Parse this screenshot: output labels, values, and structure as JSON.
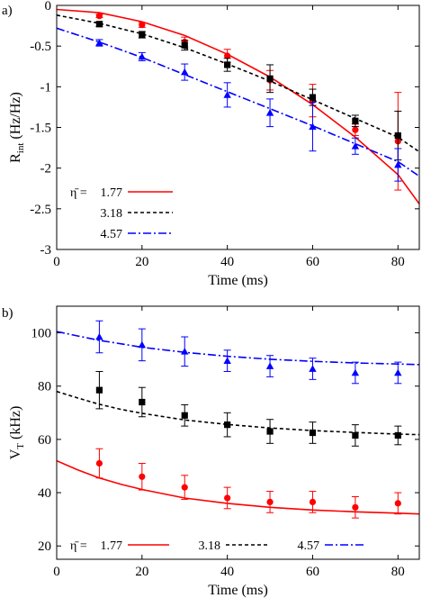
{
  "chart_data": [
    {
      "panel_label": "a)",
      "type": "line",
      "xlabel": "Time (ms)",
      "ylabel_main": "R",
      "ylabel_sub": "int",
      "ylabel_unit": " (Hz/Hz)",
      "xlim": [
        0,
        85
      ],
      "ylim": [
        -3,
        0
      ],
      "x_ticks": [
        0,
        20,
        40,
        60,
        80
      ],
      "y_ticks": [
        -3,
        -2.5,
        -2,
        -1.5,
        -1,
        -0.5,
        0
      ],
      "x_tick_labels": [
        "0",
        "20",
        "40",
        "60",
        "80"
      ],
      "y_tick_labels": [
        "-3",
        "-2.5",
        "-2",
        "-1.5",
        "-1",
        "-0.5",
        "0"
      ],
      "legend_position": "bottom-left",
      "legend_header": "η̄ = ",
      "series": [
        {
          "name": "1.77",
          "color": "#ff0000",
          "marker": "circle",
          "line_style": "solid",
          "points": [
            {
              "x": 10,
              "y": -0.13,
              "err": 0.02
            },
            {
              "x": 20,
              "y": -0.24,
              "err": 0.03
            },
            {
              "x": 30,
              "y": -0.45,
              "err": 0.06
            },
            {
              "x": 40,
              "y": -0.62,
              "err": 0.08
            },
            {
              "x": 50,
              "y": -0.92,
              "err": 0.12
            },
            {
              "x": 60,
              "y": -1.17,
              "err": 0.2
            },
            {
              "x": 70,
              "y": -1.53,
              "err": 0.07
            },
            {
              "x": 80,
              "y": -1.67,
              "err": 0.6
            }
          ],
          "fit": [
            {
              "x": 0,
              "y": -0.05
            },
            {
              "x": 10,
              "y": -0.09
            },
            {
              "x": 20,
              "y": -0.2
            },
            {
              "x": 30,
              "y": -0.37
            },
            {
              "x": 40,
              "y": -0.6
            },
            {
              "x": 50,
              "y": -0.88
            },
            {
              "x": 60,
              "y": -1.22
            },
            {
              "x": 70,
              "y": -1.62
            },
            {
              "x": 80,
              "y": -2.08
            },
            {
              "x": 85,
              "y": -2.44
            }
          ]
        },
        {
          "name": "3.18",
          "color": "#000000",
          "marker": "square",
          "line_style": "dashed",
          "points": [
            {
              "x": 10,
              "y": -0.23,
              "err": 0.03
            },
            {
              "x": 20,
              "y": -0.36,
              "err": 0.04
            },
            {
              "x": 30,
              "y": -0.49,
              "err": 0.06
            },
            {
              "x": 40,
              "y": -0.73,
              "err": 0.08
            },
            {
              "x": 50,
              "y": -0.9,
              "err": 0.17
            },
            {
              "x": 60,
              "y": -1.13,
              "err": 0.1
            },
            {
              "x": 70,
              "y": -1.42,
              "err": 0.07
            },
            {
              "x": 80,
              "y": -1.6,
              "err": 0.3
            }
          ],
          "fit": [
            {
              "x": 0,
              "y": -0.12
            },
            {
              "x": 10,
              "y": -0.22
            },
            {
              "x": 20,
              "y": -0.35
            },
            {
              "x": 30,
              "y": -0.52
            },
            {
              "x": 40,
              "y": -0.72
            },
            {
              "x": 50,
              "y": -0.93
            },
            {
              "x": 60,
              "y": -1.16
            },
            {
              "x": 70,
              "y": -1.39
            },
            {
              "x": 80,
              "y": -1.62
            },
            {
              "x": 85,
              "y": -1.8
            }
          ]
        },
        {
          "name": "4.57",
          "color": "#0000ff",
          "marker": "triangle",
          "line_style": "dashdot",
          "points": [
            {
              "x": 10,
              "y": -0.46,
              "err": 0.04
            },
            {
              "x": 20,
              "y": -0.63,
              "err": 0.05
            },
            {
              "x": 30,
              "y": -0.82,
              "err": 0.1
            },
            {
              "x": 40,
              "y": -1.1,
              "err": 0.15
            },
            {
              "x": 50,
              "y": -1.32,
              "err": 0.17
            },
            {
              "x": 60,
              "y": -1.49,
              "err": 0.3
            },
            {
              "x": 70,
              "y": -1.73,
              "err": 0.1
            },
            {
              "x": 80,
              "y": -1.96,
              "err": 0.2
            }
          ],
          "fit": [
            {
              "x": 0,
              "y": -0.28
            },
            {
              "x": 10,
              "y": -0.45
            },
            {
              "x": 20,
              "y": -0.64
            },
            {
              "x": 30,
              "y": -0.85
            },
            {
              "x": 40,
              "y": -1.06
            },
            {
              "x": 50,
              "y": -1.27
            },
            {
              "x": 60,
              "y": -1.48
            },
            {
              "x": 70,
              "y": -1.7
            },
            {
              "x": 80,
              "y": -1.92
            },
            {
              "x": 85,
              "y": -2.1
            }
          ]
        }
      ]
    },
    {
      "panel_label": "b)",
      "type": "line",
      "xlabel": "Time (ms)",
      "ylabel_main": "V",
      "ylabel_sub": "T",
      "ylabel_unit": " (kHz)",
      "xlim": [
        0,
        85
      ],
      "ylim": [
        15,
        110
      ],
      "x_ticks": [
        0,
        20,
        40,
        60,
        80
      ],
      "y_ticks": [
        20,
        40,
        60,
        80,
        100
      ],
      "x_tick_labels": [
        "0",
        "20",
        "40",
        "60",
        "80"
      ],
      "y_tick_labels": [
        "20",
        "40",
        "60",
        "80",
        "100"
      ],
      "legend_position": "bottom",
      "legend_header": "η̄ = ",
      "series": [
        {
          "name": "1.77",
          "color": "#ff0000",
          "marker": "circle",
          "line_style": "solid",
          "points": [
            {
              "x": 10,
              "y": 51,
              "err": 5.5
            },
            {
              "x": 20,
              "y": 46,
              "err": 5
            },
            {
              "x": 30,
              "y": 42,
              "err": 4.5
            },
            {
              "x": 40,
              "y": 38,
              "err": 4
            },
            {
              "x": 50,
              "y": 36.5,
              "err": 4
            },
            {
              "x": 60,
              "y": 36.5,
              "err": 4
            },
            {
              "x": 70,
              "y": 34.5,
              "err": 4
            },
            {
              "x": 80,
              "y": 36,
              "err": 4
            }
          ],
          "fit": [
            {
              "x": 0,
              "y": 52
            },
            {
              "x": 5,
              "y": 48.5
            },
            {
              "x": 10,
              "y": 45.5
            },
            {
              "x": 15,
              "y": 43.2
            },
            {
              "x": 20,
              "y": 41.2
            },
            {
              "x": 30,
              "y": 38
            },
            {
              "x": 40,
              "y": 36
            },
            {
              "x": 50,
              "y": 34.5
            },
            {
              "x": 60,
              "y": 33.5
            },
            {
              "x": 70,
              "y": 32.8
            },
            {
              "x": 80,
              "y": 32.3
            },
            {
              "x": 85,
              "y": 32
            }
          ]
        },
        {
          "name": "3.18",
          "color": "#000000",
          "marker": "square",
          "line_style": "dashed",
          "points": [
            {
              "x": 10,
              "y": 78.5,
              "err": 7
            },
            {
              "x": 20,
              "y": 74,
              "err": 5.5
            },
            {
              "x": 30,
              "y": 69,
              "err": 4
            },
            {
              "x": 40,
              "y": 65.5,
              "err": 4.5
            },
            {
              "x": 50,
              "y": 63,
              "err": 4.5
            },
            {
              "x": 60,
              "y": 62.5,
              "err": 4
            },
            {
              "x": 70,
              "y": 61.5,
              "err": 4
            },
            {
              "x": 80,
              "y": 61.5,
              "err": 3.5
            }
          ],
          "fit": [
            {
              "x": 0,
              "y": 78
            },
            {
              "x": 5,
              "y": 75.5
            },
            {
              "x": 10,
              "y": 73.2
            },
            {
              "x": 15,
              "y": 71.3
            },
            {
              "x": 20,
              "y": 69.8
            },
            {
              "x": 30,
              "y": 67.3
            },
            {
              "x": 40,
              "y": 65.6
            },
            {
              "x": 50,
              "y": 64.3
            },
            {
              "x": 60,
              "y": 63.3
            },
            {
              "x": 70,
              "y": 62.6
            },
            {
              "x": 80,
              "y": 62
            },
            {
              "x": 85,
              "y": 61.8
            }
          ]
        },
        {
          "name": "4.57",
          "color": "#0000ff",
          "marker": "triangle",
          "line_style": "dashdot",
          "points": [
            {
              "x": 10,
              "y": 98.5,
              "err": 6
            },
            {
              "x": 20,
              "y": 95.5,
              "err": 6
            },
            {
              "x": 30,
              "y": 93,
              "err": 5.5
            },
            {
              "x": 40,
              "y": 89.5,
              "err": 4
            },
            {
              "x": 50,
              "y": 87.5,
              "err": 4
            },
            {
              "x": 60,
              "y": 86.5,
              "err": 4
            },
            {
              "x": 70,
              "y": 85,
              "err": 4
            },
            {
              "x": 80,
              "y": 85,
              "err": 4
            }
          ],
          "fit": [
            {
              "x": 0,
              "y": 100.5
            },
            {
              "x": 5,
              "y": 98.8
            },
            {
              "x": 10,
              "y": 97.2
            },
            {
              "x": 15,
              "y": 95.9
            },
            {
              "x": 20,
              "y": 94.6
            },
            {
              "x": 30,
              "y": 92.7
            },
            {
              "x": 40,
              "y": 91.2
            },
            {
              "x": 50,
              "y": 90.1
            },
            {
              "x": 60,
              "y": 89.3
            },
            {
              "x": 70,
              "y": 88.7
            },
            {
              "x": 80,
              "y": 88.3
            },
            {
              "x": 85,
              "y": 88.1
            }
          ]
        }
      ]
    }
  ]
}
